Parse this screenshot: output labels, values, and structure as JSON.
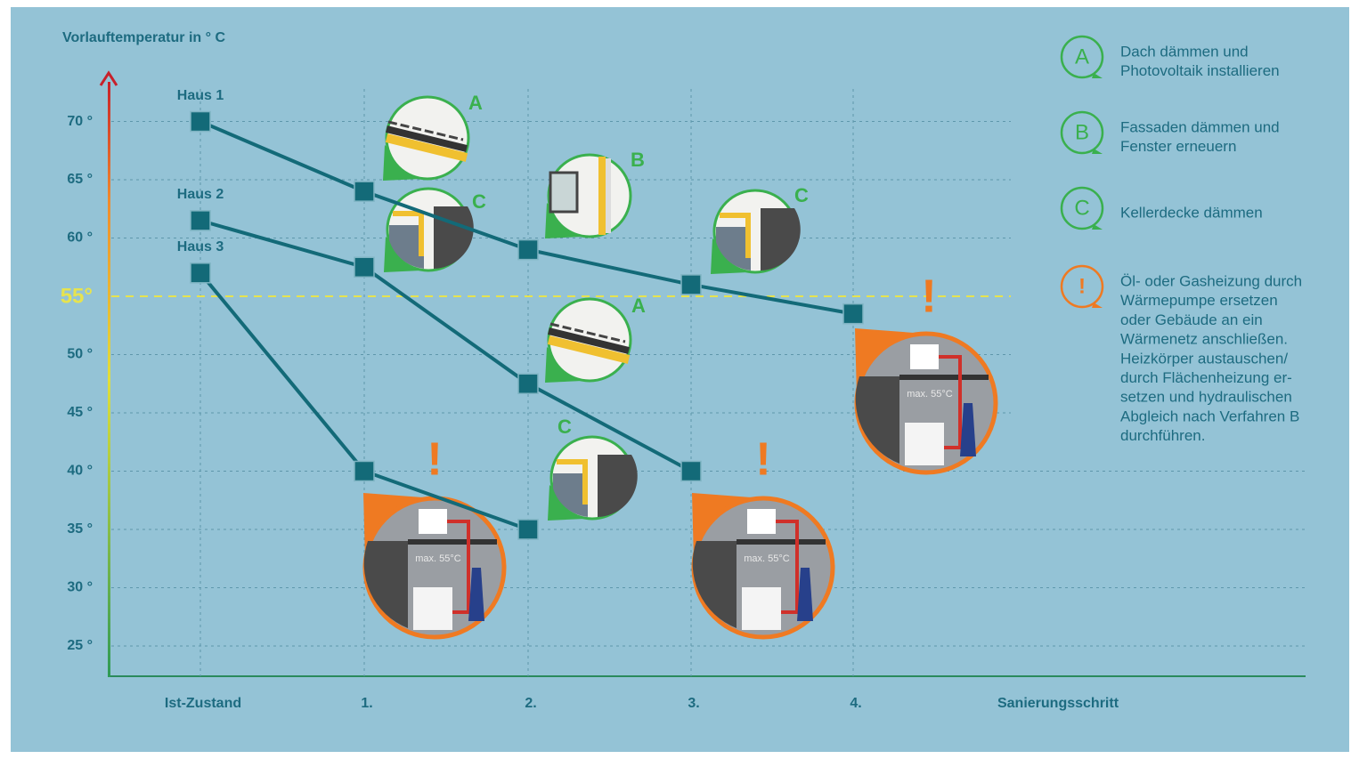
{
  "chart_data": {
    "type": "line",
    "y_label": "Vorlauftemperatur in ° C",
    "x_label": "Sanierungsschritt",
    "categories": [
      "Ist-Zustand",
      "1.",
      "2.",
      "3.",
      "4."
    ],
    "series": [
      {
        "name": "Haus 1",
        "color": "#136a78",
        "values": [
          70,
          64,
          59,
          56,
          53.5
        ]
      },
      {
        "name": "Haus 2",
        "color": "#136a78",
        "values": [
          61.5,
          57.5,
          47.5,
          40,
          null
        ]
      },
      {
        "name": "Haus 3",
        "color": "#136a78",
        "values": [
          57,
          40,
          35,
          null,
          null
        ]
      }
    ],
    "ylim": [
      22.4,
      73.4
    ],
    "yticks": [
      {
        "value": 25,
        "label": "25 °"
      },
      {
        "value": 30,
        "label": "30 °"
      },
      {
        "value": 35,
        "label": "35 °"
      },
      {
        "value": 40,
        "label": "40 °"
      },
      {
        "value": 45,
        "label": "45 °"
      },
      {
        "value": 50,
        "label": "50 °"
      },
      {
        "value": 60,
        "label": "60 °"
      },
      {
        "value": 65,
        "label": "65 °"
      },
      {
        "value": 70,
        "label": "70 °"
      }
    ],
    "reference_line": {
      "value": 55,
      "label": "55°",
      "color": "#e6e34f"
    },
    "grid": true,
    "annotations": [
      {
        "label": "A"
      },
      {
        "label": "C"
      },
      {
        "label": "B"
      },
      {
        "label": "C"
      },
      {
        "label": "A"
      },
      {
        "label": "C"
      }
    ],
    "warnings": [
      {
        "label": "!",
        "note": "max. 55°C"
      },
      {
        "label": "!",
        "note": "max. 55°C"
      },
      {
        "label": "!",
        "note": "max. 55°C"
      }
    ],
    "legend": [
      {
        "symbol": "A",
        "lines": [
          "Dach dämmen und",
          "Photovoltaik installieren"
        ]
      },
      {
        "symbol": "B",
        "lines": [
          "Fassaden dämmen und",
          "Fenster erneuern"
        ]
      },
      {
        "symbol": "C",
        "lines": [
          "Kellerdecke dämmen"
        ]
      },
      {
        "symbol": "!",
        "lines": [
          "Öl- oder Gasheizung durch",
          "Wärmepumpe ersetzen",
          "oder Gebäude an ein",
          "Wärmenetz anschließen.",
          "Heizkörper austauschen/",
          "durch Flächenheizung er-",
          "setzen und hydraulischen",
          "Abgleich nach Verfahren B",
          "durchführen."
        ]
      }
    ]
  }
}
